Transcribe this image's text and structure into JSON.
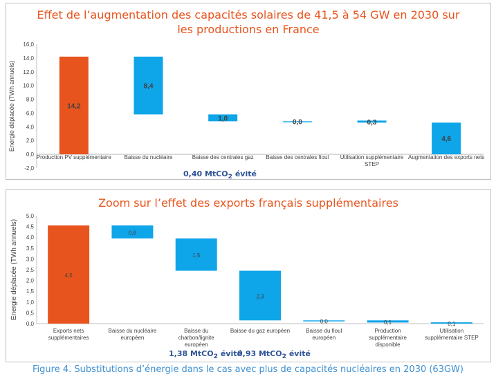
{
  "caption": "Figure 4. Substitutions d’énergie dans le cas avec plus de capacités nucléaires en 2030 (63GW)",
  "colors": {
    "orange": "#e8541d",
    "blue": "#0ea5e9",
    "note": "#2f5496",
    "caption": "#3d8fd1"
  },
  "chart_data": [
    {
      "type": "bar",
      "subtype": "waterfall",
      "title_lines": [
        "Effet de l’augmentation des capacités solaires de 41,5 à 54 GW en 2030 sur",
        "les productions en France"
      ],
      "ylabel": "Energie déplacée (TWh annuels)",
      "ylim": [
        -2,
        16
      ],
      "yticks": [
        "-2,0",
        "0,0",
        "2,0",
        "4,0",
        "6,0",
        "8,0",
        "10,0",
        "12,0",
        "14,0",
        "16,0"
      ],
      "grid": false,
      "categories": [
        "Production PV supplémentaire",
        "Baisse du nucléaire",
        "Baisse des centrales gaz",
        "Baisse des centrales fioul",
        "Utilisation supplémentaire STEP",
        "Augmentation des exports nets"
      ],
      "bars": [
        {
          "base": 0,
          "top": 14.2,
          "label": "14,2",
          "color": "#e8541d"
        },
        {
          "base": 5.8,
          "top": 14.2,
          "label": "8,4",
          "color": "#0ea5e9"
        },
        {
          "base": 4.8,
          "top": 5.8,
          "label": "1,0",
          "color": "#0ea5e9"
        },
        {
          "base": 4.8,
          "top": 4.8,
          "label": "0,0",
          "color": "#0ea5e9"
        },
        {
          "base": 4.6,
          "top": 4.9,
          "label": "0,3",
          "color": "#0ea5e9"
        },
        {
          "base": 0,
          "top": 4.6,
          "label": "4,6",
          "color": "#0ea5e9"
        }
      ],
      "annotation": {
        "pre": "0,40 MtCO",
        "sub": "2",
        "post": " évité"
      }
    },
    {
      "type": "bar",
      "subtype": "waterfall",
      "title_lines": [
        "Zoom sur l’effet des exports français supplémentaires"
      ],
      "ylabel": "Energie déplacée (TWh annuels)",
      "ylim": [
        0,
        5
      ],
      "yticks": [
        "0,0",
        "0,5",
        "1,0",
        "1,5",
        "2,0",
        "2,5",
        "3,0",
        "3,5",
        "4,0",
        "4,5",
        "5,0"
      ],
      "grid": false,
      "categories": [
        "Exports nets supplémentaires",
        "Baisse du nucléaire européen",
        "Baisse du charbon/lignite européen",
        "Baisse du gaz européen",
        "Baisse du fioul européen",
        "Production supplémentaire disponible",
        "Utilisation supplémentaire STEP"
      ],
      "bars": [
        {
          "base": 0,
          "top": 4.55,
          "label": "4,5",
          "color": "#e8541d"
        },
        {
          "base": 3.95,
          "top": 4.55,
          "label": "0,6",
          "color": "#0ea5e9"
        },
        {
          "base": 2.45,
          "top": 3.95,
          "label": "1,5",
          "color": "#0ea5e9"
        },
        {
          "base": 0.15,
          "top": 2.45,
          "label": "2,3",
          "color": "#0ea5e9"
        },
        {
          "base": 0.15,
          "top": 0.15,
          "label": "0,0",
          "color": "#0ea5e9"
        },
        {
          "base": 0.05,
          "top": 0.15,
          "label": "0,1",
          "color": "#0ea5e9"
        },
        {
          "base": 0.0,
          "top": 0.06,
          "label": "0,1",
          "color": "#0ea5e9"
        }
      ],
      "annotations": [
        {
          "pre": "1,38 MtCO",
          "sub": "2",
          "post": " évité"
        },
        {
          "pre": "0,93 MtCO",
          "sub": "2",
          "post": " évité"
        }
      ]
    }
  ]
}
